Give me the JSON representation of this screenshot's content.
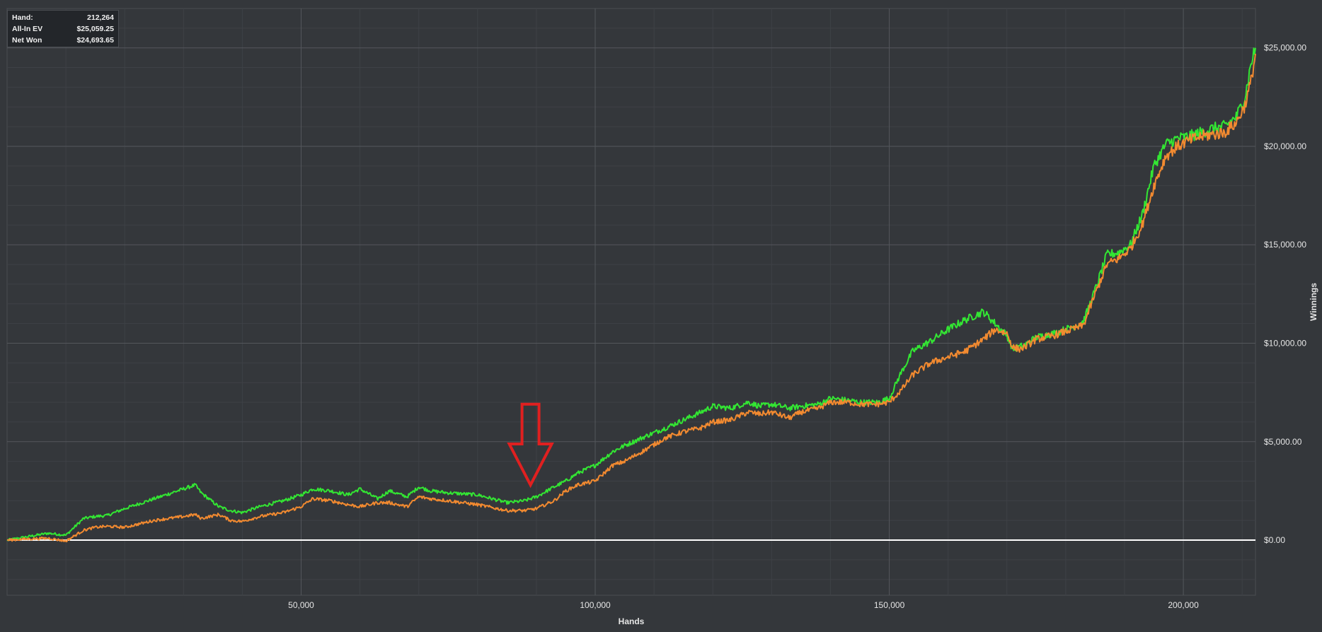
{
  "info_box": {
    "rows": [
      {
        "label": "Hand:",
        "value": "212,264"
      },
      {
        "label": "All-In EV",
        "value": "$25,059.25"
      },
      {
        "label": "Net Won",
        "value": "$24,693.65"
      }
    ]
  },
  "chart_data": {
    "type": "line",
    "xlabel": "Hands",
    "ylabel": "Winnings",
    "xlim": [
      0,
      212264
    ],
    "ylim": [
      -2800,
      27000
    ],
    "x_ticks": [
      50000,
      100000,
      150000,
      200000
    ],
    "x_tick_labels": [
      "50,000",
      "100,000",
      "150,000",
      "200,000"
    ],
    "y_ticks": [
      0,
      5000,
      10000,
      15000,
      20000,
      25000
    ],
    "y_tick_labels": [
      "$0.00",
      "$5,000.00",
      "$10,000.00",
      "$15,000.00",
      "$20,000.00",
      "$25,000.00"
    ],
    "grid": true,
    "zero_line_color": "#ffffff",
    "series": [
      {
        "color": "#33e633",
        "x": [
          0,
          3000,
          7000,
          10000,
          13000,
          15000,
          17000,
          20000,
          25000,
          30000,
          32000,
          33000,
          36000,
          38000,
          40000,
          43000,
          47000,
          50000,
          52000,
          55000,
          58000,
          60000,
          63000,
          65000,
          68000,
          70000,
          72000,
          75000,
          80000,
          85000,
          88000,
          90000,
          93000,
          95000,
          97000,
          100000,
          103000,
          105000,
          108000,
          112000,
          115000,
          118000,
          120000,
          123000,
          126000,
          128000,
          130000,
          133000,
          135000,
          138000,
          140000,
          143000,
          145000,
          148000,
          150000,
          152000,
          154000,
          157000,
          160000,
          163000,
          166000,
          168000,
          170000,
          171000,
          172000,
          173000,
          175000,
          178000,
          181000,
          183000,
          185000,
          187000,
          189000,
          191000,
          193000,
          195000,
          197000,
          199000,
          201000,
          203000,
          205000,
          207000,
          209000,
          210500,
          211500,
          212264
        ],
        "y": [
          0,
          150,
          350,
          250,
          1100,
          1200,
          1250,
          1600,
          2100,
          2600,
          2800,
          2400,
          1700,
          1500,
          1400,
          1700,
          2000,
          2300,
          2600,
          2500,
          2300,
          2600,
          2100,
          2500,
          2200,
          2700,
          2500,
          2400,
          2300,
          1900,
          2000,
          2200,
          2700,
          3000,
          3400,
          3800,
          4500,
          4800,
          5200,
          5700,
          6100,
          6500,
          6800,
          6700,
          7000,
          6800,
          6900,
          6700,
          6800,
          6900,
          7200,
          7100,
          7000,
          7000,
          7200,
          8500,
          9600,
          10100,
          10700,
          11200,
          11600,
          11000,
          10400,
          9700,
          9800,
          9900,
          10300,
          10500,
          10800,
          11100,
          12700,
          14500,
          14600,
          15000,
          16500,
          19000,
          20100,
          20400,
          20500,
          20700,
          20900,
          21000,
          21500,
          22500,
          24200,
          25000
        ]
      },
      {
        "color": "#f28a30",
        "x": [
          0,
          3000,
          7000,
          10000,
          13000,
          15000,
          17000,
          20000,
          25000,
          30000,
          32000,
          33000,
          36000,
          38000,
          40000,
          43000,
          47000,
          50000,
          52000,
          55000,
          58000,
          60000,
          63000,
          65000,
          68000,
          70000,
          72000,
          75000,
          80000,
          85000,
          88000,
          90000,
          93000,
          95000,
          97000,
          100000,
          103000,
          105000,
          108000,
          112000,
          115000,
          118000,
          120000,
          123000,
          126000,
          128000,
          130000,
          133000,
          135000,
          138000,
          140000,
          143000,
          145000,
          148000,
          150000,
          152000,
          154000,
          157000,
          160000,
          163000,
          166000,
          168000,
          170000,
          171000,
          172000,
          173000,
          175000,
          178000,
          181000,
          183000,
          185000,
          187000,
          189000,
          191000,
          193000,
          195000,
          197000,
          199000,
          201000,
          203000,
          205000,
          207000,
          209000,
          210500,
          211500,
          212264
        ],
        "y": [
          0,
          50,
          100,
          -50,
          500,
          650,
          700,
          650,
          1000,
          1200,
          1300,
          1100,
          1300,
          1000,
          950,
          1200,
          1400,
          1700,
          2100,
          2000,
          1800,
          1700,
          1900,
          1900,
          1700,
          2200,
          2100,
          2000,
          1800,
          1500,
          1500,
          1600,
          2000,
          2500,
          2800,
          3000,
          3800,
          4000,
          4500,
          5200,
          5500,
          5700,
          6000,
          6100,
          6500,
          6400,
          6500,
          6200,
          6500,
          6700,
          7000,
          7000,
          6900,
          6900,
          7000,
          7600,
          8400,
          9000,
          9300,
          9600,
          10200,
          10700,
          10500,
          9800,
          9700,
          9800,
          10200,
          10400,
          10700,
          10900,
          12500,
          14000,
          14300,
          14800,
          16000,
          18000,
          19500,
          20000,
          20300,
          20500,
          20600,
          20700,
          21200,
          22100,
          23300,
          24700
        ]
      }
    ],
    "annotations": [
      {
        "type": "arrow",
        "shape": "hollow-down-arrow",
        "color": "#e02020",
        "x": 89000,
        "y_top": 6900,
        "y_tip": 2800
      }
    ]
  }
}
